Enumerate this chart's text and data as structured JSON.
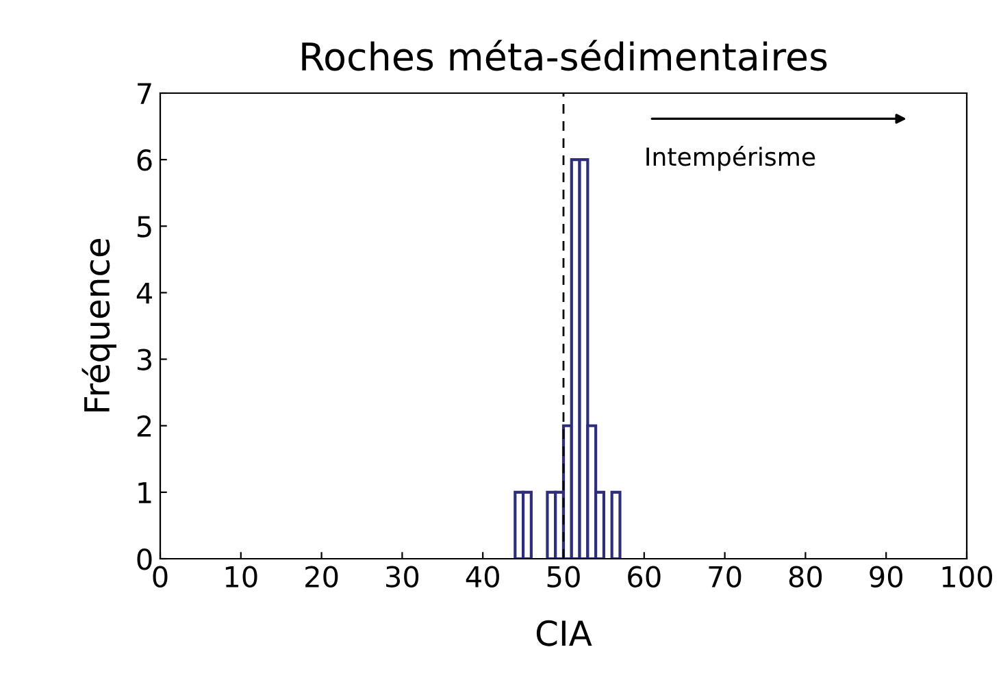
{
  "chart_data": {
    "type": "histogram",
    "title": "Roches méta-sédimentaires",
    "xlabel": "CIA",
    "ylabel": "Fréquence",
    "bins": [
      44,
      45,
      46,
      47,
      48,
      49,
      50,
      51,
      52,
      53,
      54,
      55,
      56,
      57
    ],
    "values": [
      1,
      1,
      0,
      0,
      1,
      1,
      2,
      6,
      6,
      2,
      1,
      0,
      1
    ],
    "color": "#2e2e7a",
    "xlim": [
      0,
      100
    ],
    "xticks": [
      0,
      10,
      20,
      30,
      40,
      50,
      60,
      70,
      80,
      90,
      100
    ],
    "ylim": [
      0,
      7
    ],
    "yticks": [
      0,
      1,
      2,
      3,
      4,
      5,
      6,
      7
    ],
    "grid": false,
    "ref_lines": [
      {
        "axis": "x",
        "value": 50,
        "color": "#000000",
        "line_style": "dashed"
      }
    ],
    "annotations": [
      "Intempérisme"
    ]
  }
}
